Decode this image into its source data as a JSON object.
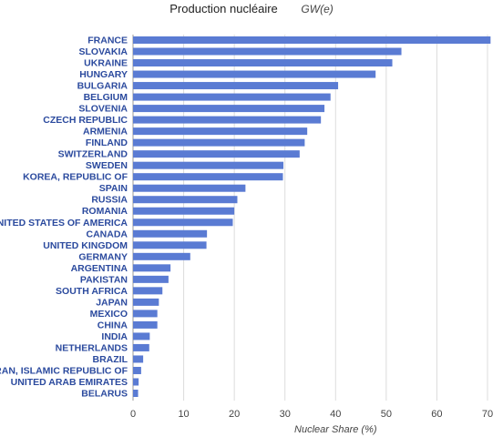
{
  "chart_data": {
    "type": "bar",
    "orientation": "horizontal",
    "title": "Production nucléaire",
    "unit_label": "GW(e)",
    "xlabel": "Nuclear Share (%)",
    "ylabel": "",
    "xlim": [
      0,
      70
    ],
    "xticks": [
      "0",
      "10",
      "20",
      "30",
      "40",
      "50",
      "60",
      "70"
    ],
    "grid": true,
    "bar_color": "#5a7bd3",
    "categories": [
      "FRANCE",
      "SLOVAKIA",
      "UKRAINE",
      "HUNGARY",
      "BULGARIA",
      "BELGIUM",
      "SLOVENIA",
      "CZECH REPUBLIC",
      "ARMENIA",
      "FINLAND",
      "SWITZERLAND",
      "SWEDEN",
      "KOREA, REPUBLIC OF",
      "SPAIN",
      "RUSSIA",
      "ROMANIA",
      "UNITED STATES OF AMERICA",
      "CANADA",
      "UNITED KINGDOM",
      "GERMANY",
      "ARGENTINA",
      "PAKISTAN",
      "SOUTH AFRICA",
      "JAPAN",
      "MEXICO",
      "CHINA",
      "INDIA",
      "NETHERLANDS",
      "BRAZIL",
      "IRAN, ISLAMIC REPUBLIC OF",
      "UNITED ARAB EMIRATES",
      "BELARUS"
    ],
    "values": [
      70.6,
      53.0,
      51.2,
      47.9,
      40.5,
      39.0,
      37.8,
      37.1,
      34.4,
      33.9,
      32.9,
      29.7,
      29.6,
      22.2,
      20.6,
      20.0,
      19.7,
      14.6,
      14.5,
      11.3,
      7.4,
      7.0,
      5.8,
      5.1,
      4.8,
      4.8,
      3.3,
      3.2,
      2.0,
      1.6,
      1.1,
      1.0
    ]
  }
}
